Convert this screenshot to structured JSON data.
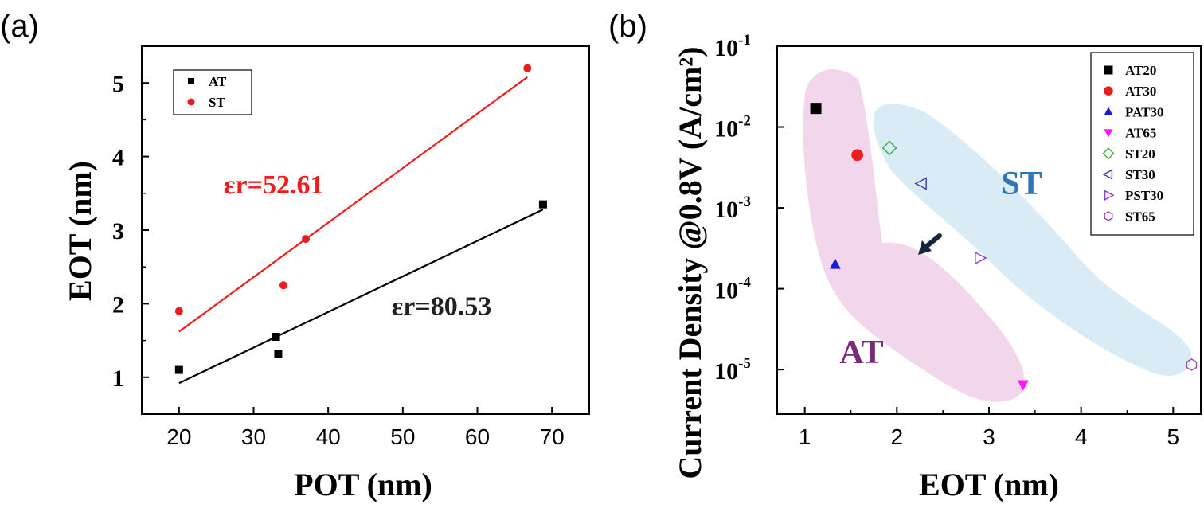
{
  "chart_data": [
    {
      "type": "scatter",
      "panel_label": "(a)",
      "xlabel": "POT (nm)",
      "ylabel": "EOT (nm)",
      "xlim": [
        15,
        75
      ],
      "ylim": [
        0.5,
        5.5
      ],
      "xticks": [
        20,
        30,
        40,
        50,
        60,
        70
      ],
      "yticks": [
        1,
        2,
        3,
        4,
        5
      ],
      "legend_position": "top-left",
      "series": [
        {
          "name": "AT",
          "marker": "square",
          "color": "#000000",
          "x": [
            20,
            33,
            33.3,
            68.8
          ],
          "y": [
            1.1,
            1.55,
            1.32,
            3.35
          ],
          "fit": {
            "x": [
              20,
              68.8
            ],
            "y": [
              0.92,
              3.28
            ]
          }
        },
        {
          "name": "ST",
          "marker": "circle",
          "color": "#ee1c1c",
          "x": [
            20,
            34,
            37,
            66.7
          ],
          "y": [
            1.9,
            2.25,
            2.88,
            5.2
          ],
          "fit": {
            "x": [
              20,
              66.7
            ],
            "y": [
              1.62,
              5.08
            ]
          }
        }
      ],
      "annotations": [
        {
          "text": "εr=52.61",
          "color": "#ee1c1c",
          "x": 26,
          "y": 3.5
        },
        {
          "text": "εr=80.53",
          "color": "#222222",
          "x": 48.5,
          "y": 1.85
        }
      ]
    },
    {
      "type": "scatter",
      "panel_label": "(b)",
      "xlabel": "EOT (nm)",
      "ylabel": "Current Density @0.8V (A/cm²)",
      "xlim": [
        0.7,
        5.3
      ],
      "ylim_log10": [
        -5.55,
        -1
      ],
      "log_y": true,
      "xticks": [
        1,
        2,
        3,
        4,
        5
      ],
      "yticks": [
        {
          "base": "10",
          "exp": "-1",
          "value": -1
        },
        {
          "base": "10",
          "exp": "-2",
          "value": -2
        },
        {
          "base": "10",
          "exp": "-3",
          "value": -3
        },
        {
          "base": "10",
          "exp": "-4",
          "value": -4
        },
        {
          "base": "10",
          "exp": "-5",
          "value": -5
        }
      ],
      "legend_position": "top-right",
      "series": [
        {
          "name": "AT20",
          "marker": "square",
          "fill": true,
          "color": "#000000",
          "x": 1.12,
          "y": 0.017
        },
        {
          "name": "AT30",
          "marker": "circle",
          "fill": true,
          "color": "#ee1c1c",
          "x": 1.57,
          "y": 0.0045
        },
        {
          "name": "PAT30",
          "marker": "triangle-up",
          "fill": true,
          "color": "#1a1adc",
          "x": 1.33,
          "y": 0.0002
        },
        {
          "name": "AT65",
          "marker": "triangle-down",
          "fill": true,
          "color": "#ff1aff",
          "x": 3.37,
          "y": 6.5e-06
        },
        {
          "name": "ST20",
          "marker": "diamond",
          "fill": false,
          "color": "#44aa44",
          "x": 1.92,
          "y": 0.0055
        },
        {
          "name": "ST30",
          "marker": "triangle-left",
          "fill": false,
          "color": "#3a3aa0",
          "x": 2.27,
          "y": 0.002
        },
        {
          "name": "PST30",
          "marker": "triangle-right",
          "fill": false,
          "color": "#8a3ad8",
          "x": 2.9,
          "y": 0.00024
        },
        {
          "name": "ST65",
          "marker": "hexagon",
          "fill": false,
          "color": "#9a4aaa",
          "x": 5.2,
          "y": 1.15e-05
        }
      ],
      "regions": [
        {
          "label": "AT",
          "fill": "#f2d6ec",
          "label_color": "#7a2a78"
        },
        {
          "label": "ST",
          "fill": "#d9ecf6",
          "label_color": "#2f78b8"
        }
      ]
    }
  ]
}
